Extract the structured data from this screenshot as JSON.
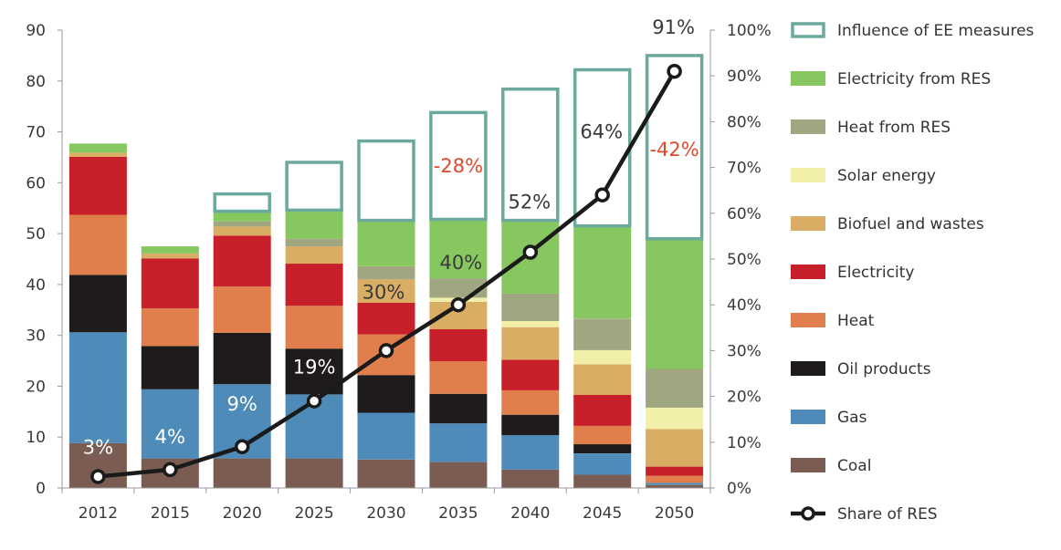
{
  "chart_data": {
    "type": "bar",
    "stacked": true,
    "categories": [
      "2012",
      "2015",
      "2020",
      "2025",
      "2030",
      "2035",
      "2040",
      "2045",
      "2050"
    ],
    "ylim": [
      0,
      90
    ],
    "yticks": [
      "0",
      "10",
      "20",
      "30",
      "40",
      "50",
      "60",
      "70",
      "80",
      "90"
    ],
    "y2lim": [
      0,
      100
    ],
    "y2ticks": [
      "0%",
      "10%",
      "20%",
      "30%",
      "40%",
      "50%",
      "60%",
      "70%",
      "80%",
      "90%",
      "100%"
    ],
    "grid": false,
    "legend_position": "right",
    "series": [
      {
        "name": "Coal",
        "color": "#7a5c52",
        "values": [
          8.8,
          5.8,
          5.8,
          5.8,
          5.6,
          5.1,
          3.6,
          2.6,
          0.6
        ]
      },
      {
        "name": "Gas",
        "color": "#4f8bb8",
        "values": [
          21.8,
          13.6,
          14.6,
          12.6,
          9.2,
          7.6,
          6.8,
          4.2,
          0.4
        ]
      },
      {
        "name": "Oil products",
        "color": "#1f1b1b",
        "values": [
          11.3,
          8.5,
          10.1,
          9.0,
          7.4,
          5.8,
          4.0,
          1.8,
          0.0
        ]
      },
      {
        "name": "Heat",
        "color": "#e07f4b",
        "values": [
          11.8,
          7.4,
          9.1,
          8.4,
          8.0,
          6.4,
          4.8,
          3.6,
          1.4
        ]
      },
      {
        "name": "Electricity",
        "color": "#c8202a",
        "values": [
          11.4,
          9.8,
          10.0,
          8.3,
          6.2,
          6.3,
          6.0,
          6.1,
          1.8
        ]
      },
      {
        "name": "Biofuel and wastes",
        "color": "#d9ad63",
        "values": [
          0.8,
          1.0,
          1.8,
          3.4,
          4.6,
          5.4,
          6.4,
          6.0,
          7.4
        ]
      },
      {
        "name": "Solar energy",
        "color": "#f2f0a8",
        "values": [
          0.0,
          0.0,
          0.0,
          0.0,
          0.0,
          0.8,
          1.2,
          2.8,
          4.2
        ]
      },
      {
        "name": "Heat from RES",
        "color": "#a0a680",
        "values": [
          0.0,
          0.0,
          1.0,
          1.5,
          2.6,
          3.8,
          5.4,
          6.2,
          7.6
        ]
      },
      {
        "name": "Electricity from RES",
        "color": "#86c75f",
        "values": [
          1.8,
          1.4,
          2.0,
          5.6,
          9.0,
          11.6,
          14.4,
          18.2,
          25.6
        ]
      }
    ],
    "ee_influence": {
      "name": "Influence of EE measures",
      "color": "#6aa99c",
      "tops": [
        null,
        null,
        57.8,
        64.0,
        68.2,
        73.8,
        78.4,
        82.2,
        85.0
      ]
    },
    "share_res": {
      "name": "Share of RES",
      "values": [
        2.5,
        4,
        9,
        19,
        30,
        40,
        51.5,
        64,
        91
      ],
      "axis": "right",
      "labels": [
        "3%",
        "4%",
        "9%",
        "19%",
        "30%",
        "40%",
        "52%",
        "64%",
        "91%"
      ]
    },
    "ee_annotations": [
      {
        "category": "2035",
        "text": "-28%",
        "color": "#e04a2c"
      },
      {
        "category": "2050",
        "text": "-42%",
        "color": "#e04a2c"
      }
    ]
  },
  "legend": {
    "items": [
      {
        "label": "Influence of EE measures",
        "kind": "outline",
        "color": "#6aa99c"
      },
      {
        "label": "Electricity from RES",
        "kind": "fill",
        "color": "#86c75f"
      },
      {
        "label": "Heat from RES",
        "kind": "fill",
        "color": "#a0a680"
      },
      {
        "label": "Solar energy",
        "kind": "fill",
        "color": "#f2f0a8"
      },
      {
        "label": "Biofuel and wastes",
        "kind": "fill",
        "color": "#d9ad63"
      },
      {
        "label": "Electricity",
        "kind": "fill",
        "color": "#c8202a"
      },
      {
        "label": "Heat",
        "kind": "fill",
        "color": "#e07f4b"
      },
      {
        "label": "Oil products",
        "kind": "fill",
        "color": "#1f1b1b"
      },
      {
        "label": "Gas",
        "kind": "fill",
        "color": "#4f8bb8"
      },
      {
        "label": "Coal",
        "kind": "fill",
        "color": "#7a5c52"
      },
      {
        "label": "Share of RES",
        "kind": "line",
        "color": "#1a1a1a"
      }
    ]
  }
}
